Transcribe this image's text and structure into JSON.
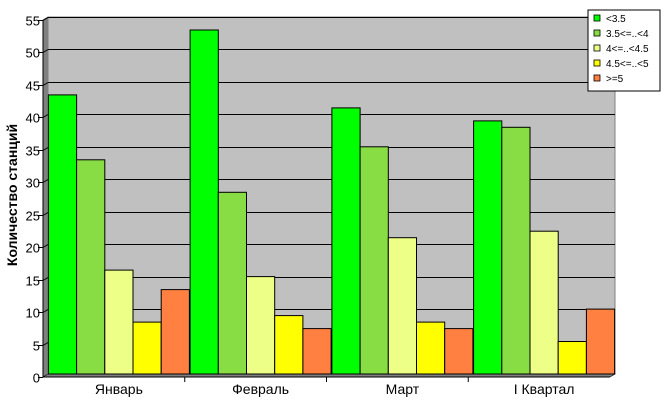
{
  "chart_data": {
    "type": "bar",
    "title": "",
    "xlabel": "",
    "ylabel": "Количество станций",
    "ylim": [
      0,
      55
    ],
    "ytick_step": 5,
    "grid": true,
    "plot_background": "#c0c0c0",
    "legend_position": "top-right",
    "categories": [
      "Январь",
      "Февраль",
      "Март",
      "I Квартал"
    ],
    "series": [
      {
        "name": "<3.5",
        "color": "#00ff00",
        "values": [
          43,
          53,
          41,
          39
        ]
      },
      {
        "name": "3.5<=..<4",
        "color": "#88dd44",
        "values": [
          33,
          28,
          35,
          38
        ]
      },
      {
        "name": "4<=..<4.5",
        "color": "#eeff88",
        "values": [
          16,
          15,
          21,
          22
        ]
      },
      {
        "name": "4.5<=..<5",
        "color": "#ffff00",
        "values": [
          8,
          9,
          8,
          5
        ]
      },
      {
        "name": ">=5",
        "color": "#ff8040",
        "values": [
          13,
          7,
          7,
          10
        ]
      }
    ]
  }
}
